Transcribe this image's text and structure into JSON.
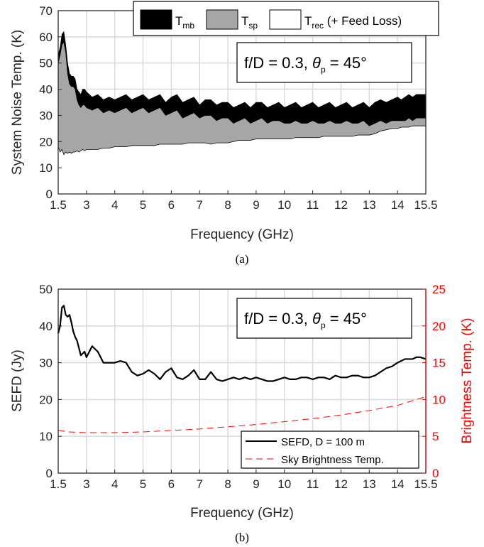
{
  "chart_data": [
    {
      "id": "a",
      "type": "area",
      "caption": "(a)",
      "xlabel": "Frequency (GHz)",
      "ylabel": "System Noise Temp. (K)",
      "xlim": [
        1.5,
        15.5
      ],
      "ylim": [
        0,
        70
      ],
      "xticks": [
        "1.5",
        "3",
        "4",
        "5",
        "6",
        "7",
        "8",
        "9",
        "10",
        "11",
        "12",
        "13",
        "14",
        "15.5"
      ],
      "xtick_values": [
        1.5,
        3,
        4,
        5,
        6,
        7,
        8,
        9,
        10,
        11,
        12,
        13,
        14,
        15.5
      ],
      "yticks": [
        "0",
        "10",
        "20",
        "30",
        "40",
        "50",
        "60",
        "70"
      ],
      "ytick_values": [
        0,
        10,
        20,
        30,
        40,
        50,
        60,
        70
      ],
      "grid": true,
      "legend_position": "top-right",
      "annotation": {
        "prefix": "f/D = 0.3, ",
        "theta": "θ",
        "sub": "p",
        "suffix": " = 45°"
      },
      "x": [
        1.5,
        1.6,
        1.7,
        1.8,
        1.9,
        2.0,
        2.1,
        2.2,
        2.3,
        2.4,
        2.5,
        2.6,
        2.7,
        2.8,
        2.9,
        3.0,
        3.2,
        3.4,
        3.6,
        3.8,
        4.0,
        4.2,
        4.4,
        4.6,
        4.8,
        5.0,
        5.2,
        5.4,
        5.6,
        5.8,
        6.0,
        6.2,
        6.4,
        6.6,
        6.8,
        7.0,
        7.2,
        7.4,
        7.6,
        7.8,
        8.0,
        8.2,
        8.4,
        8.6,
        8.8,
        9.0,
        9.2,
        9.4,
        9.6,
        9.8,
        10.0,
        10.2,
        10.4,
        10.6,
        10.8,
        11.0,
        11.2,
        11.4,
        11.6,
        11.8,
        12.0,
        12.2,
        12.4,
        12.6,
        12.8,
        13.0,
        13.2,
        13.4,
        13.6,
        13.8,
        14.0,
        14.2,
        14.4,
        14.6,
        14.8,
        15.0,
        15.2,
        15.5
      ],
      "series": [
        {
          "name": "T_mb",
          "legend": {
            "main": "T",
            "sub": "mb",
            "extra": ""
          },
          "color": "#000000",
          "values": [
            53,
            56,
            61,
            62,
            57,
            50,
            46,
            45,
            45,
            44,
            40,
            39,
            38,
            40,
            40,
            39,
            37,
            38,
            36,
            37,
            36,
            37,
            38,
            36,
            37,
            38,
            36,
            37,
            38,
            35,
            37,
            38,
            35,
            36,
            37,
            34,
            36,
            36,
            34,
            35,
            35,
            33,
            34,
            35,
            33,
            35,
            35,
            33,
            34,
            35,
            33,
            34,
            35,
            33,
            34,
            35,
            33,
            34,
            35,
            33,
            34,
            35,
            33,
            34,
            35,
            33,
            35,
            36,
            35,
            36,
            37,
            36,
            37,
            38,
            37,
            38,
            38,
            38
          ]
        },
        {
          "name": "T_sp",
          "legend": {
            "main": "T",
            "sub": "sp",
            "extra": ""
          },
          "color": "#a6a6a6",
          "values": [
            50,
            53,
            57,
            58,
            54,
            46,
            42,
            41,
            41,
            40,
            36,
            34,
            33,
            34,
            34,
            33,
            32,
            33,
            31,
            32,
            31,
            32,
            33,
            31,
            32,
            33,
            31,
            32,
            33,
            30,
            31,
            32,
            29,
            30,
            31,
            29,
            30,
            30,
            28,
            29,
            29,
            27,
            28,
            29,
            27,
            28,
            29,
            27,
            28,
            28,
            27,
            27,
            28,
            27,
            27,
            28,
            27,
            27,
            28,
            27,
            27,
            28,
            27,
            27,
            28,
            26,
            27,
            28,
            27,
            28,
            28,
            28,
            28,
            29,
            28,
            29,
            29,
            29
          ]
        },
        {
          "name": "T_rec (+ Feed Loss)",
          "legend": {
            "main": "T",
            "sub": "rec",
            "extra": " (+ Feed Loss)"
          },
          "color": "#ffffff",
          "values": [
            18,
            16,
            17,
            15,
            16,
            15.5,
            16,
            15.5,
            16,
            16,
            16.5,
            16,
            16.5,
            17,
            16.5,
            17,
            17,
            17,
            17.5,
            17.5,
            18,
            18,
            18,
            18.5,
            18.5,
            18.5,
            18.5,
            18.5,
            19,
            19,
            19,
            19,
            19,
            19.5,
            19.5,
            19.5,
            19.5,
            19,
            19.5,
            19.5,
            19.5,
            20,
            20.5,
            20.5,
            20.5,
            21,
            21,
            21,
            21,
            21,
            21,
            21,
            21.5,
            21.5,
            21.5,
            21.5,
            21.5,
            22,
            22,
            22,
            22,
            22,
            22,
            22.5,
            22.5,
            22.5,
            23,
            24,
            24.5,
            25,
            25,
            25.5,
            25.5,
            25.5,
            26,
            26,
            26,
            26
          ]
        }
      ]
    },
    {
      "id": "b",
      "type": "line",
      "caption": "(b)",
      "xlabel": "Frequency (GHz)",
      "ylabel": "SEFD (Jy)",
      "y2label": "Brightness Temp. (K)",
      "xlim": [
        1.5,
        15.5
      ],
      "ylim": [
        0,
        50
      ],
      "y2lim": [
        0,
        25
      ],
      "xticks": [
        "1.5",
        "3",
        "4",
        "5",
        "6",
        "7",
        "8",
        "9",
        "10",
        "11",
        "12",
        "13",
        "14",
        "15.5"
      ],
      "xtick_values": [
        1.5,
        3,
        4,
        5,
        6,
        7,
        8,
        9,
        10,
        11,
        12,
        13,
        14,
        15.5
      ],
      "yticks": [
        "0",
        "10",
        "20",
        "30",
        "40",
        "50"
      ],
      "ytick_values": [
        0,
        10,
        20,
        30,
        40,
        50
      ],
      "y2ticks": [
        "0",
        "5",
        "10",
        "15",
        "20",
        "25"
      ],
      "y2tick_values": [
        0,
        5,
        10,
        15,
        20,
        25
      ],
      "grid": true,
      "legend_position": "bottom-right",
      "annotation": {
        "prefix": "f/D = 0.3, ",
        "theta": "θ",
        "sub": "p",
        "suffix": " = 45°"
      },
      "series": [
        {
          "name": "SEFD, D = 100 m",
          "axis": "left",
          "color": "#000000",
          "style": "solid",
          "x": [
            1.5,
            1.6,
            1.7,
            1.8,
            1.9,
            2.0,
            2.1,
            2.2,
            2.3,
            2.4,
            2.5,
            2.6,
            2.7,
            2.8,
            2.9,
            3.0,
            3.2,
            3.4,
            3.6,
            3.8,
            4.0,
            4.2,
            4.4,
            4.6,
            4.8,
            5.0,
            5.2,
            5.4,
            5.6,
            5.8,
            6.0,
            6.2,
            6.4,
            6.6,
            6.8,
            7.0,
            7.2,
            7.4,
            7.6,
            7.8,
            8.0,
            8.2,
            8.4,
            8.6,
            8.8,
            9.0,
            9.2,
            9.4,
            9.6,
            9.8,
            10.0,
            10.2,
            10.4,
            10.6,
            10.8,
            11.0,
            11.2,
            11.4,
            11.6,
            11.8,
            12.0,
            12.2,
            12.4,
            12.6,
            12.8,
            13.0,
            13.2,
            13.4,
            13.6,
            13.8,
            14.0,
            14.2,
            14.4,
            14.6,
            14.8,
            15.0,
            15.2,
            15.5
          ],
          "values": [
            38,
            40,
            45,
            45.5,
            43,
            42.5,
            43,
            41,
            38.5,
            37,
            36,
            34,
            32,
            32.5,
            33,
            31.5,
            34.5,
            33,
            30,
            30,
            30,
            30.5,
            30,
            27.5,
            26.5,
            27,
            28,
            27,
            25.5,
            27.5,
            28.5,
            26,
            25.5,
            26.5,
            28,
            25.5,
            25.5,
            27.5,
            25.5,
            25,
            25.5,
            26,
            25.5,
            26,
            25.5,
            26,
            25.5,
            25,
            25,
            25.5,
            26,
            25.5,
            25.5,
            26,
            26,
            25.5,
            26,
            26,
            25.5,
            26.5,
            26,
            26,
            26.5,
            26.5,
            26,
            26,
            26.5,
            27.5,
            28.5,
            29,
            30,
            30.5,
            31,
            31,
            31,
            31.5,
            31.5,
            31
          ]
        },
        {
          "name": "Sky Brightness Temp.",
          "axis": "right",
          "color": "#ff0000",
          "style": "dashed",
          "x": [
            1.5,
            2.0,
            3.0,
            4.0,
            5.0,
            6.0,
            7.0,
            8.0,
            9.0,
            10.0,
            11.0,
            12.0,
            13.0,
            14.0,
            15.0,
            15.5
          ],
          "values": [
            5.8,
            5.6,
            5.5,
            5.5,
            5.6,
            5.8,
            6.0,
            6.3,
            6.6,
            7.0,
            7.4,
            7.9,
            8.5,
            9.2,
            10.0,
            10.4
          ]
        }
      ]
    }
  ]
}
